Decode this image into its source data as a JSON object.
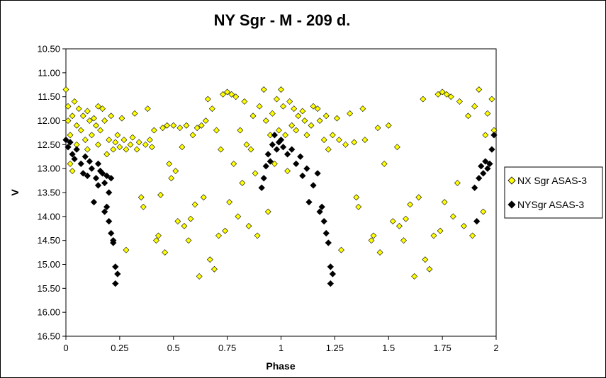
{
  "chart_data": {
    "type": "scatter",
    "title": "NY Sgr - M - 209 d.",
    "xlabel": "Phase",
    "ylabel": "V",
    "xlim": [
      0,
      2
    ],
    "ylim": [
      10.5,
      16.5
    ],
    "y_reversed": true,
    "x_ticks": [
      "0",
      "0.25",
      "0.5",
      "0.75",
      "1",
      "1.25",
      "1.5",
      "1.75",
      "2"
    ],
    "y_ticks": [
      "10.50",
      "11.00",
      "11.50",
      "12.00",
      "12.50",
      "13.00",
      "13.50",
      "14.00",
      "14.50",
      "15.00",
      "15.50",
      "16.00",
      "16.50"
    ],
    "grid": false,
    "legend_position": "right",
    "series": [
      {
        "name": "NX Sgr ASAS-3",
        "color": "#ffff00",
        "marker": "diamond",
        "points": [
          [
            0.0,
            11.35
          ],
          [
            0.01,
            11.7
          ],
          [
            0.01,
            12.0
          ],
          [
            0.02,
            12.3
          ],
          [
            0.02,
            12.9
          ],
          [
            0.03,
            13.05
          ],
          [
            0.03,
            11.9
          ],
          [
            0.04,
            11.6
          ],
          [
            0.05,
            12.1
          ],
          [
            0.05,
            12.5
          ],
          [
            0.06,
            11.75
          ],
          [
            0.07,
            12.2
          ],
          [
            0.08,
            11.9
          ],
          [
            0.09,
            12.4
          ],
          [
            0.1,
            11.8
          ],
          [
            0.1,
            12.6
          ],
          [
            0.11,
            12.0
          ],
          [
            0.12,
            12.3
          ],
          [
            0.13,
            11.95
          ],
          [
            0.14,
            12.1
          ],
          [
            0.15,
            11.7
          ],
          [
            0.15,
            12.5
          ],
          [
            0.16,
            12.2
          ],
          [
            0.17,
            11.75
          ],
          [
            0.18,
            12.0
          ],
          [
            0.19,
            12.7
          ],
          [
            0.2,
            12.4
          ],
          [
            0.21,
            11.9
          ],
          [
            0.22,
            12.6
          ],
          [
            0.23,
            12.45
          ],
          [
            0.24,
            12.3
          ],
          [
            0.25,
            12.55
          ],
          [
            0.26,
            11.95
          ],
          [
            0.27,
            12.4
          ],
          [
            0.28,
            12.6
          ],
          [
            0.28,
            14.7
          ],
          [
            0.3,
            12.5
          ],
          [
            0.31,
            12.35
          ],
          [
            0.32,
            11.85
          ],
          [
            0.33,
            12.6
          ],
          [
            0.34,
            12.45
          ],
          [
            0.35,
            13.6
          ],
          [
            0.36,
            13.8
          ],
          [
            0.37,
            12.5
          ],
          [
            0.38,
            11.75
          ],
          [
            0.39,
            12.4
          ],
          [
            0.4,
            12.55
          ],
          [
            0.41,
            12.2
          ],
          [
            0.42,
            14.5
          ],
          [
            0.43,
            14.4
          ],
          [
            0.44,
            13.55
          ],
          [
            0.45,
            12.15
          ],
          [
            0.46,
            14.75
          ],
          [
            0.47,
            12.1
          ],
          [
            0.48,
            12.9
          ],
          [
            0.49,
            13.2
          ],
          [
            0.5,
            12.1
          ],
          [
            0.51,
            13.05
          ],
          [
            0.52,
            14.1
          ],
          [
            0.53,
            12.15
          ],
          [
            0.54,
            12.55
          ],
          [
            0.55,
            14.2
          ],
          [
            0.56,
            12.1
          ],
          [
            0.57,
            14.5
          ],
          [
            0.58,
            14.05
          ],
          [
            0.59,
            12.3
          ],
          [
            0.6,
            13.75
          ],
          [
            0.61,
            12.15
          ],
          [
            0.62,
            15.25
          ],
          [
            0.63,
            12.1
          ],
          [
            0.64,
            13.6
          ],
          [
            0.65,
            12.0
          ],
          [
            0.66,
            11.55
          ],
          [
            0.67,
            14.9
          ],
          [
            0.68,
            11.75
          ],
          [
            0.69,
            15.1
          ],
          [
            0.7,
            12.2
          ],
          [
            0.71,
            14.4
          ],
          [
            0.72,
            12.6
          ],
          [
            0.73,
            11.45
          ],
          [
            0.74,
            14.3
          ],
          [
            0.75,
            11.4
          ],
          [
            0.76,
            13.7
          ],
          [
            0.77,
            11.45
          ],
          [
            0.78,
            12.9
          ],
          [
            0.79,
            11.5
          ],
          [
            0.8,
            14.0
          ],
          [
            0.81,
            12.2
          ],
          [
            0.82,
            13.3
          ],
          [
            0.83,
            11.6
          ],
          [
            0.84,
            12.5
          ],
          [
            0.85,
            14.2
          ],
          [
            0.86,
            12.6
          ],
          [
            0.87,
            11.9
          ],
          [
            0.88,
            13.1
          ],
          [
            0.89,
            14.4
          ],
          [
            0.9,
            11.7
          ],
          [
            0.91,
            13.4
          ],
          [
            0.92,
            11.35
          ],
          [
            0.93,
            12.0
          ],
          [
            0.94,
            13.9
          ],
          [
            0.95,
            12.3
          ],
          [
            0.96,
            11.85
          ],
          [
            0.97,
            12.9
          ],
          [
            0.98,
            11.55
          ],
          [
            0.99,
            12.2
          ],
          [
            1.0,
            11.35
          ],
          [
            1.01,
            11.7
          ],
          [
            1.02,
            12.3
          ],
          [
            1.03,
            13.05
          ],
          [
            1.04,
            11.6
          ],
          [
            1.05,
            12.1
          ],
          [
            1.06,
            11.75
          ],
          [
            1.07,
            12.2
          ],
          [
            1.08,
            11.9
          ],
          [
            1.1,
            11.8
          ],
          [
            1.11,
            12.0
          ],
          [
            1.12,
            12.3
          ],
          [
            1.14,
            12.1
          ],
          [
            1.15,
            11.7
          ],
          [
            1.17,
            11.75
          ],
          [
            1.18,
            12.0
          ],
          [
            1.2,
            12.4
          ],
          [
            1.21,
            11.9
          ],
          [
            1.22,
            12.6
          ],
          [
            1.24,
            12.3
          ],
          [
            1.26,
            11.95
          ],
          [
            1.27,
            12.4
          ],
          [
            1.28,
            14.7
          ],
          [
            1.3,
            12.5
          ],
          [
            1.32,
            11.85
          ],
          [
            1.34,
            12.45
          ],
          [
            1.35,
            13.6
          ],
          [
            1.36,
            13.8
          ],
          [
            1.38,
            11.75
          ],
          [
            1.39,
            12.4
          ],
          [
            1.42,
            14.5
          ],
          [
            1.43,
            14.4
          ],
          [
            1.45,
            12.15
          ],
          [
            1.46,
            14.75
          ],
          [
            1.48,
            12.9
          ],
          [
            1.5,
            12.1
          ],
          [
            1.52,
            14.1
          ],
          [
            1.54,
            12.55
          ],
          [
            1.55,
            14.2
          ],
          [
            1.57,
            14.5
          ],
          [
            1.58,
            14.05
          ],
          [
            1.6,
            13.75
          ],
          [
            1.62,
            15.25
          ],
          [
            1.64,
            13.6
          ],
          [
            1.66,
            11.55
          ],
          [
            1.67,
            14.9
          ],
          [
            1.69,
            15.1
          ],
          [
            1.71,
            14.4
          ],
          [
            1.73,
            11.45
          ],
          [
            1.74,
            14.3
          ],
          [
            1.75,
            11.4
          ],
          [
            1.76,
            13.7
          ],
          [
            1.77,
            11.45
          ],
          [
            1.79,
            11.5
          ],
          [
            1.8,
            14.0
          ],
          [
            1.82,
            13.3
          ],
          [
            1.83,
            11.6
          ],
          [
            1.85,
            14.2
          ],
          [
            1.87,
            11.9
          ],
          [
            1.89,
            14.4
          ],
          [
            1.9,
            11.7
          ],
          [
            1.92,
            11.35
          ],
          [
            1.94,
            13.9
          ],
          [
            1.95,
            12.3
          ],
          [
            1.96,
            11.85
          ],
          [
            1.97,
            12.9
          ],
          [
            1.98,
            11.55
          ],
          [
            1.99,
            12.2
          ]
        ]
      },
      {
        "name": "NYSgr ASAS-3",
        "color": "#000000",
        "marker": "diamond",
        "points": [
          [
            0.0,
            12.4
          ],
          [
            0.01,
            12.55
          ],
          [
            0.02,
            12.45
          ],
          [
            0.03,
            12.7
          ],
          [
            0.04,
            12.8
          ],
          [
            0.05,
            12.6
          ],
          [
            0.07,
            12.9
          ],
          [
            0.08,
            13.1
          ],
          [
            0.09,
            12.75
          ],
          [
            0.1,
            13.15
          ],
          [
            0.11,
            12.85
          ],
          [
            0.12,
            13.0
          ],
          [
            0.13,
            13.7
          ],
          [
            0.14,
            13.2
          ],
          [
            0.15,
            13.35
          ],
          [
            0.15,
            12.9
          ],
          [
            0.16,
            13.05
          ],
          [
            0.17,
            13.1
          ],
          [
            0.18,
            13.3
          ],
          [
            0.18,
            13.9
          ],
          [
            0.19,
            13.15
          ],
          [
            0.19,
            13.8
          ],
          [
            0.2,
            14.1
          ],
          [
            0.2,
            13.5
          ],
          [
            0.21,
            14.35
          ],
          [
            0.21,
            13.2
          ],
          [
            0.22,
            14.55
          ],
          [
            0.22,
            14.5
          ],
          [
            0.23,
            15.05
          ],
          [
            0.23,
            15.4
          ],
          [
            0.24,
            15.2
          ],
          [
            0.91,
            13.4
          ],
          [
            0.92,
            13.2
          ],
          [
            0.93,
            12.95
          ],
          [
            0.94,
            12.7
          ],
          [
            0.95,
            12.85
          ],
          [
            0.96,
            12.5
          ],
          [
            0.97,
            12.3
          ],
          [
            0.98,
            12.6
          ],
          [
            0.99,
            12.45
          ],
          [
            1.0,
            12.4
          ],
          [
            1.01,
            12.55
          ],
          [
            1.03,
            12.7
          ],
          [
            1.05,
            12.6
          ],
          [
            1.07,
            12.9
          ],
          [
            1.09,
            12.75
          ],
          [
            1.1,
            13.15
          ],
          [
            1.12,
            13.0
          ],
          [
            1.13,
            13.7
          ],
          [
            1.15,
            13.35
          ],
          [
            1.17,
            13.1
          ],
          [
            1.18,
            13.9
          ],
          [
            1.19,
            13.8
          ],
          [
            1.2,
            14.1
          ],
          [
            1.21,
            14.35
          ],
          [
            1.22,
            14.55
          ],
          [
            1.23,
            15.05
          ],
          [
            1.23,
            15.4
          ],
          [
            1.24,
            15.2
          ],
          [
            1.9,
            13.4
          ],
          [
            1.91,
            14.1
          ],
          [
            1.92,
            13.2
          ],
          [
            1.93,
            12.95
          ],
          [
            1.94,
            13.1
          ],
          [
            1.95,
            12.85
          ],
          [
            1.96,
            13.0
          ],
          [
            1.97,
            12.9
          ],
          [
            1.98,
            12.6
          ],
          [
            1.99,
            12.3
          ]
        ]
      }
    ]
  }
}
